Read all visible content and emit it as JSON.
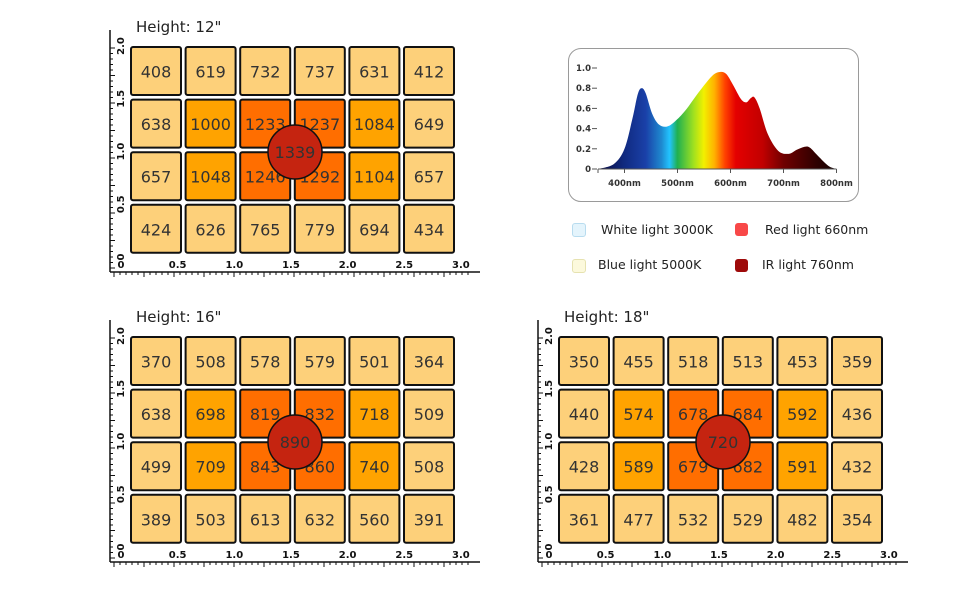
{
  "colors": {
    "cell_low": "#fdd07a",
    "cell_mid": "#ffa300",
    "cell_high": "#ff6e00",
    "center": "#c52410",
    "border": "#111111"
  },
  "chart_data": [
    {
      "type": "heatmap",
      "title": "Height: 12\"",
      "x_ticks": [
        "0",
        "0.5",
        "1.0",
        "1.5",
        "2.0",
        "2.5",
        "3.0"
      ],
      "y_ticks": [
        "0",
        "0.5",
        "1.0",
        "1.5",
        "2.0"
      ],
      "xlim": [
        0,
        3.0
      ],
      "ylim": [
        0,
        2.0
      ],
      "rows": [
        [
          408,
          619,
          732,
          737,
          631,
          412
        ],
        [
          638,
          1000,
          1233,
          1237,
          1084,
          649
        ],
        [
          657,
          1048,
          1246,
          1292,
          1104,
          657
        ],
        [
          424,
          626,
          765,
          779,
          694,
          434
        ]
      ],
      "center_value": 1339
    },
    {
      "type": "heatmap",
      "title": "Height: 16\"",
      "x_ticks": [
        "0",
        "0.5",
        "1.0",
        "1.5",
        "2.0",
        "2.5",
        "3.0"
      ],
      "y_ticks": [
        "0",
        "0.5",
        "1.0",
        "1.5",
        "2.0"
      ],
      "xlim": [
        0,
        3.0
      ],
      "ylim": [
        0,
        2.0
      ],
      "rows": [
        [
          370,
          508,
          578,
          579,
          501,
          364
        ],
        [
          638,
          698,
          819,
          832,
          718,
          509
        ],
        [
          499,
          709,
          843,
          860,
          740,
          508
        ],
        [
          389,
          503,
          613,
          632,
          560,
          391
        ]
      ],
      "center_value": 890
    },
    {
      "type": "heatmap",
      "title": "Height: 18\"",
      "x_ticks": [
        "0",
        "0.5",
        "1.0",
        "1.5",
        "2.0",
        "2.5",
        "3.0"
      ],
      "y_ticks": [
        "0",
        "0.5",
        "1.0",
        "1.5",
        "2.0"
      ],
      "xlim": [
        0,
        3.0
      ],
      "ylim": [
        0,
        2.0
      ],
      "rows": [
        [
          350,
          455,
          518,
          513,
          453,
          359
        ],
        [
          440,
          574,
          678,
          684,
          592,
          436
        ],
        [
          428,
          589,
          679,
          682,
          591,
          432
        ],
        [
          361,
          477,
          532,
          529,
          482,
          354
        ]
      ],
      "center_value": 720
    },
    {
      "type": "area",
      "x_ticks": [
        "400nm",
        "500nm",
        "600nm",
        "700nm",
        "800nm"
      ],
      "y_ticks": [
        "0",
        "0.2",
        "0.4",
        "0.6",
        "0.8",
        "1.0"
      ],
      "xlim": [
        350,
        800
      ],
      "ylim": [
        0,
        1.0
      ],
      "x": [
        350,
        380,
        400,
        415,
        425,
        432,
        440,
        452,
        465,
        480,
        495,
        515,
        540,
        565,
        580,
        592,
        605,
        620,
        630,
        638,
        645,
        655,
        670,
        690,
        710,
        725,
        740,
        750,
        765,
        785,
        800
      ],
      "y": [
        0,
        0.05,
        0.2,
        0.5,
        0.74,
        0.8,
        0.75,
        0.55,
        0.44,
        0.42,
        0.47,
        0.58,
        0.76,
        0.92,
        0.96,
        0.94,
        0.83,
        0.69,
        0.66,
        0.7,
        0.71,
        0.6,
        0.35,
        0.18,
        0.15,
        0.19,
        0.22,
        0.21,
        0.13,
        0.03,
        0
      ]
    }
  ],
  "legend": [
    {
      "label": "White light 3000K",
      "color": "#e4f4fc"
    },
    {
      "label": "Blue light 5000K",
      "color": "#fcf9dc"
    },
    {
      "label": "Red light 660nm",
      "color": "#f84848"
    },
    {
      "label": "IR light 760nm",
      "color": "#9e0a0a"
    }
  ]
}
